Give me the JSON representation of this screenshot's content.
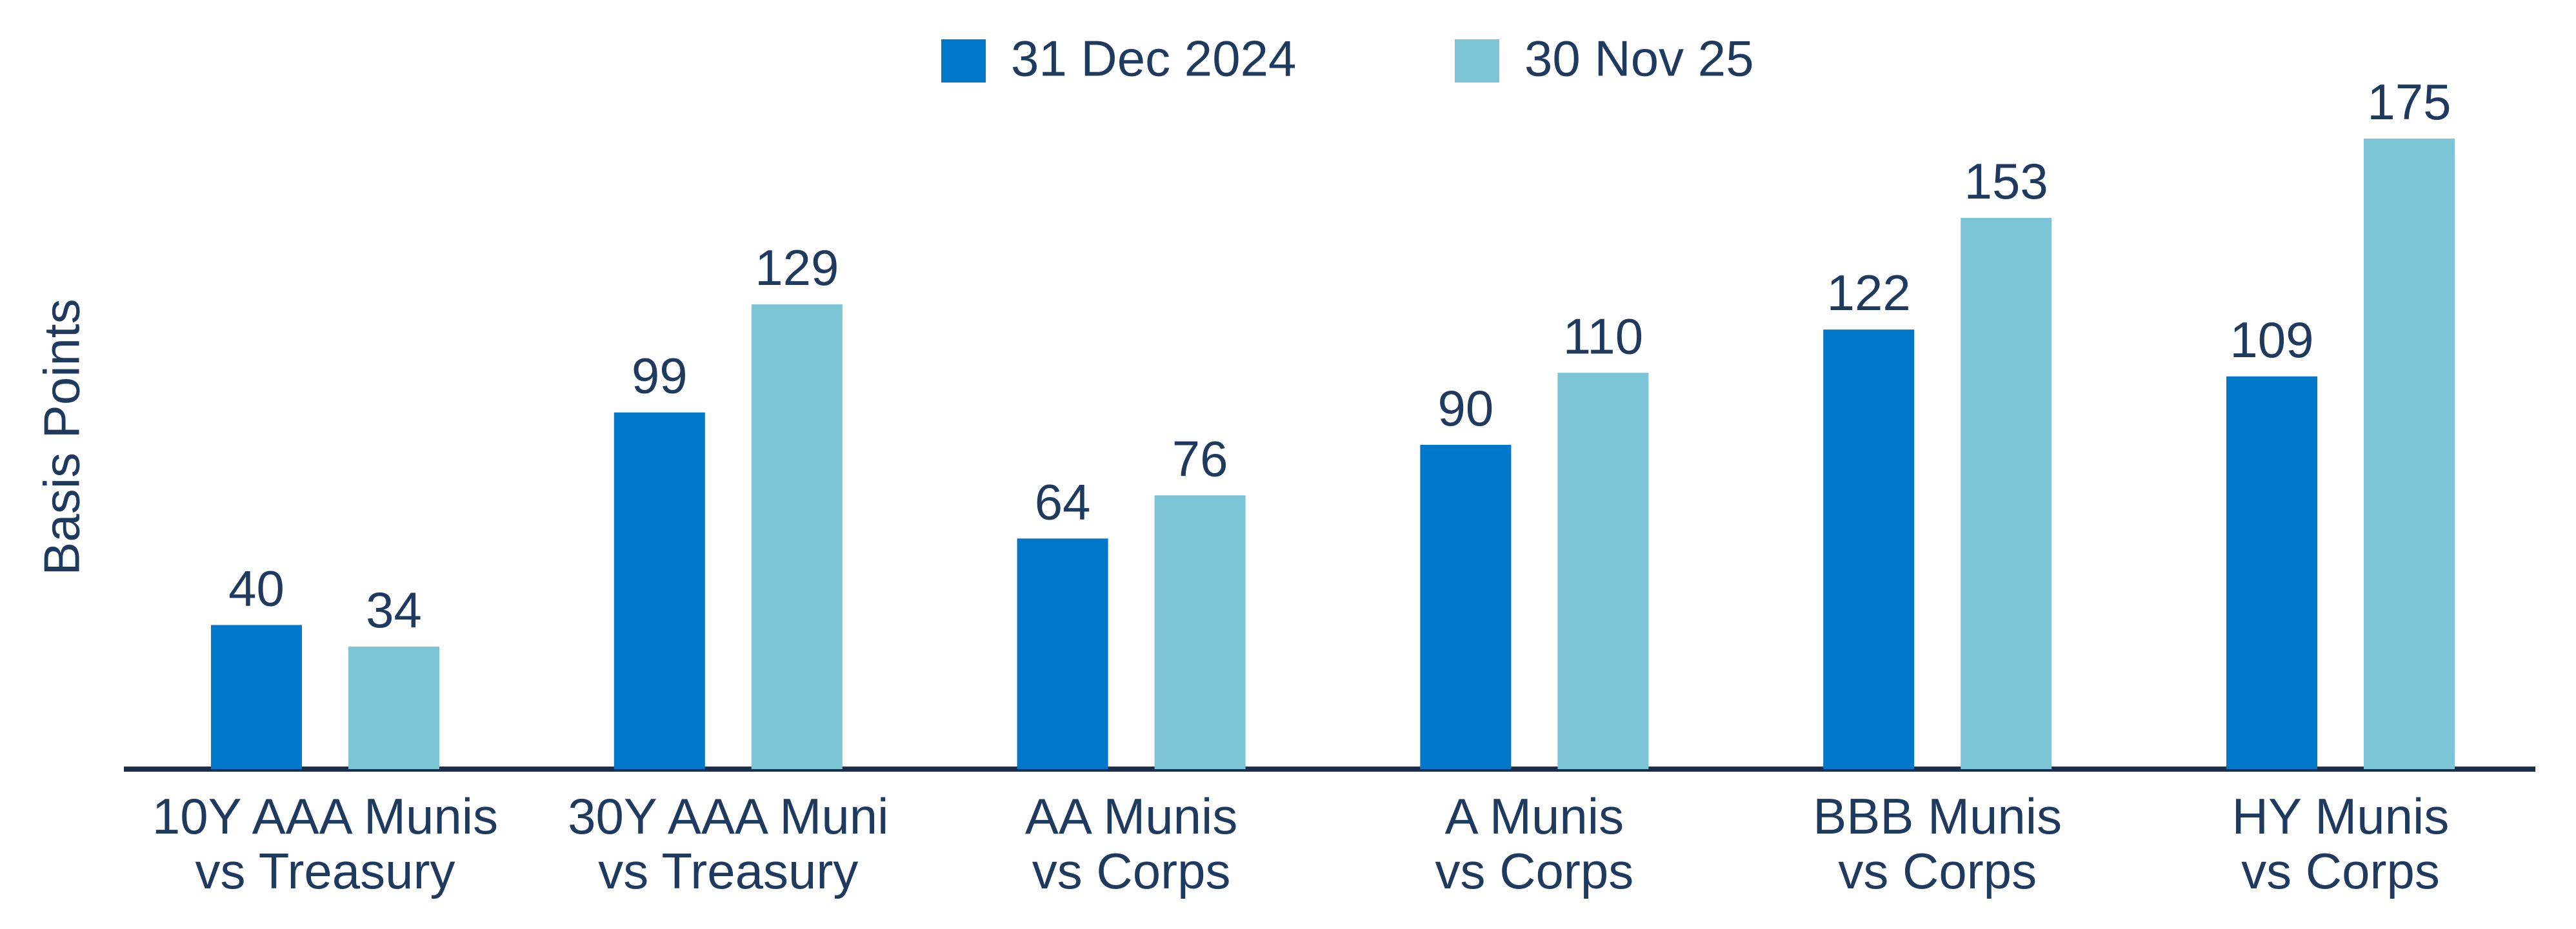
{
  "chart_data": {
    "type": "bar",
    "y_label": "Basis Points",
    "categories": [
      [
        "10Y AAA Munis",
        "vs Treasury"
      ],
      [
        "30Y AAA Muni",
        "vs Treasury"
      ],
      [
        "AA Munis",
        "vs Corps"
      ],
      [
        "A Munis",
        "vs Corps"
      ],
      [
        "BBB Munis",
        "vs Corps"
      ],
      [
        "HY Munis",
        "vs Corps"
      ]
    ],
    "series": [
      {
        "name": "31 Dec 2024",
        "color": "#0077c8",
        "values": [
          40,
          99,
          64,
          90,
          122,
          109
        ]
      },
      {
        "name": "30 Nov 25",
        "color": "#7cc5d6",
        "values": [
          34,
          129,
          76,
          110,
          153,
          175
        ]
      }
    ],
    "legend": "top"
  }
}
